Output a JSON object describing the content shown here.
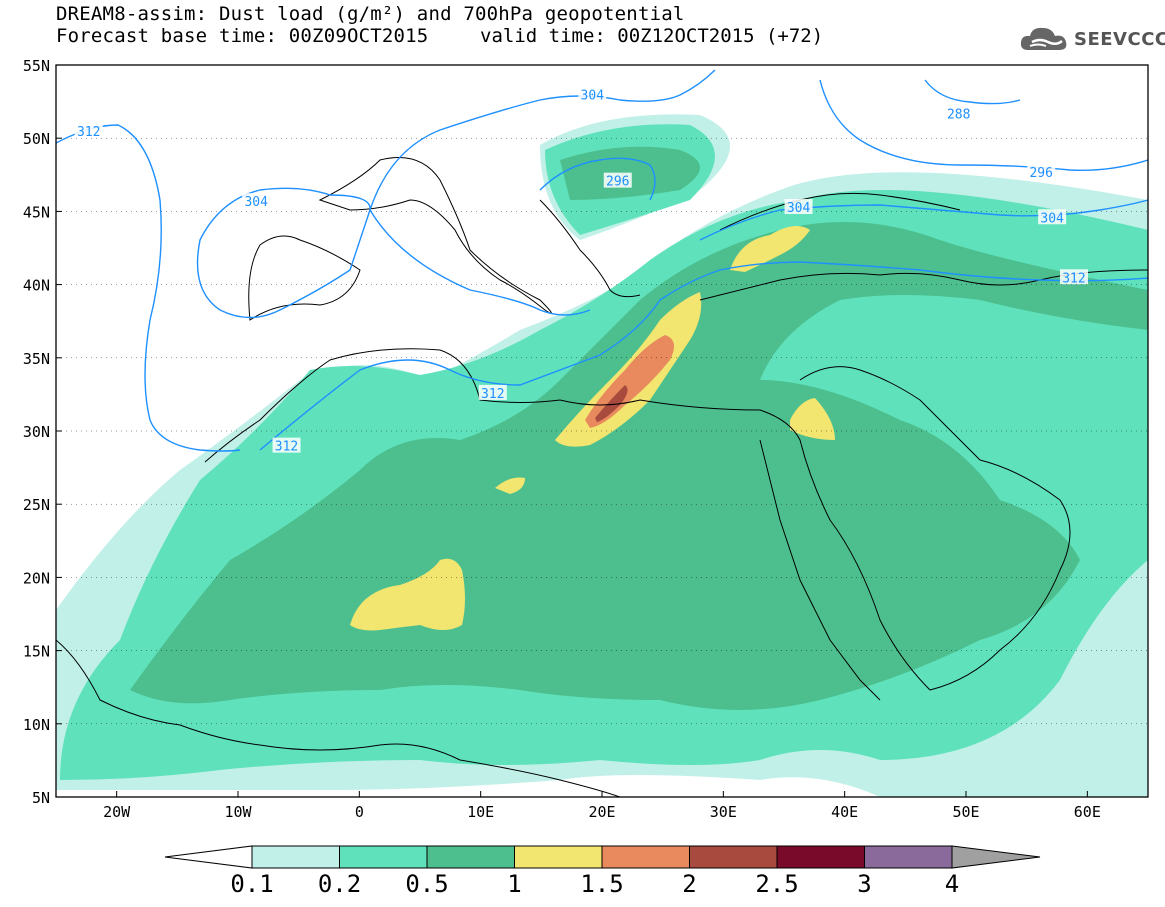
{
  "header": {
    "title_line1": "DREAM8-assim: Dust load (g/m²) and 700hPa geopotential",
    "title_line2": "Forecast base time: 00Z09OCT2015",
    "valid_time": "valid time: 00Z12OCT2015 (+72)"
  },
  "logo": {
    "text": "SEEVCCC",
    "icon": "cloud-icon"
  },
  "map": {
    "lat_labels": [
      "55N",
      "50N",
      "45N",
      "40N",
      "35N",
      "30N",
      "25N",
      "20N",
      "15N",
      "10N",
      "5N"
    ],
    "lon_labels": [
      "20W",
      "10W",
      "0",
      "10E",
      "20E",
      "30E",
      "40E",
      "50E",
      "60E"
    ],
    "contours": [
      {
        "label": "312",
        "lon": -22.3,
        "lat": 50.5
      },
      {
        "label": "304",
        "lon": -8.5,
        "lat": 45.7
      },
      {
        "label": "304",
        "lon": 19.2,
        "lat": 53.0
      },
      {
        "label": "296",
        "lon": 21.3,
        "lat": 47.1
      },
      {
        "label": "288",
        "lon": 49.4,
        "lat": 51.7
      },
      {
        "label": "296",
        "lon": 56.2,
        "lat": 47.7
      },
      {
        "label": "304",
        "lon": 36.2,
        "lat": 45.3
      },
      {
        "label": "304",
        "lon": 57.1,
        "lat": 44.6
      },
      {
        "label": "312",
        "lon": 58.9,
        "lat": 40.5
      },
      {
        "label": "312",
        "lon": 11.0,
        "lat": 32.6
      },
      {
        "label": "312",
        "lon": -6.0,
        "lat": 29.0
      }
    ],
    "colors": {
      "ocean": "#ffffff",
      "contour": "#1e90ff"
    }
  },
  "colorbar": {
    "labels": [
      "0.1",
      "0.2",
      "0.5",
      "1",
      "1.5",
      "2",
      "2.5",
      "3",
      "4"
    ],
    "colors": [
      "#ffffff",
      "#c1f0e8",
      "#5fe2bc",
      "#4dbf8f",
      "#f2e670",
      "#e88a5e",
      "#a84a3d",
      "#7a0a2a",
      "#8a6a9a",
      "#a0a0a0"
    ]
  }
}
